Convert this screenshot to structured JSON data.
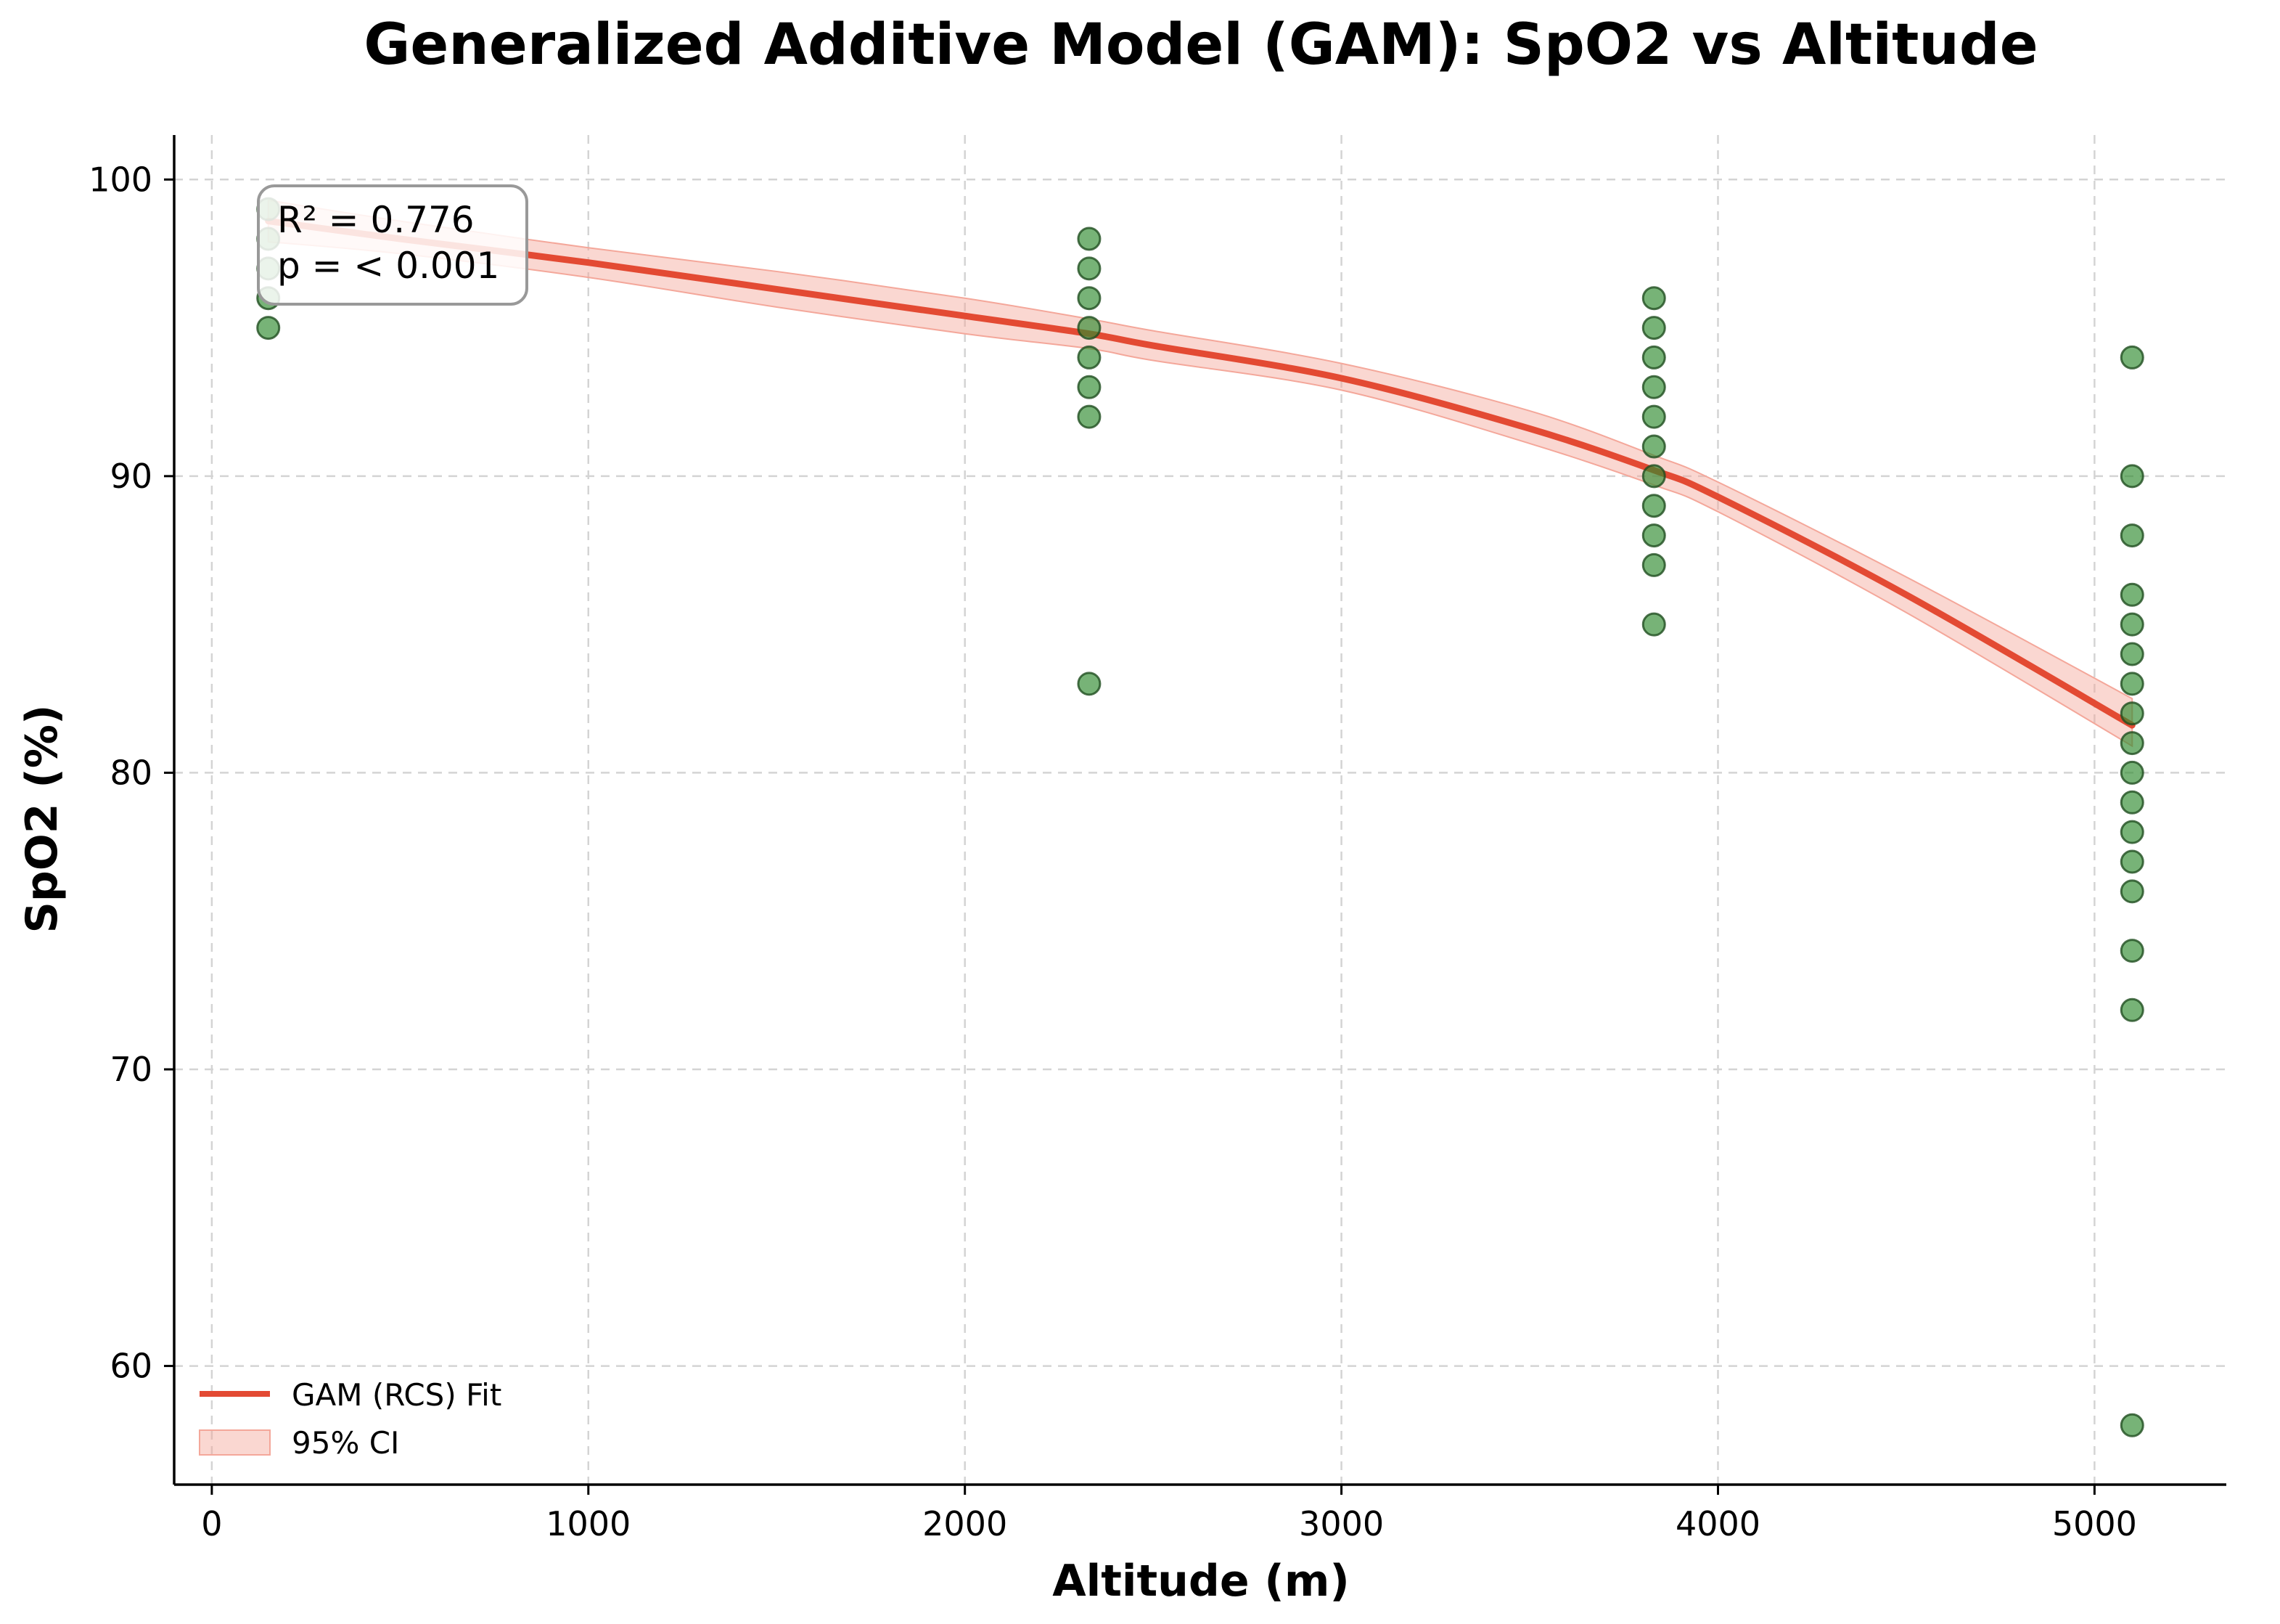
{
  "chart_data": {
    "type": "scatter",
    "title": "Generalized Additive Model (GAM): SpO2 vs Altitude",
    "xlabel": "Altitude (m)",
    "ylabel": "SpO2 (%)",
    "xlim": [
      -100,
      5350
    ],
    "ylim": [
      56,
      101.5
    ],
    "x_ticks": [
      0,
      1000,
      2000,
      3000,
      4000,
      5000
    ],
    "y_ticks": [
      60,
      70,
      80,
      90,
      100
    ],
    "grid": true,
    "legend_position": "lower-left",
    "annotation": {
      "lines": [
        "R² = 0.776",
        "p = < 0.001"
      ],
      "position": "top-left"
    },
    "colors": {
      "fit_line": "#e34a33",
      "ci_fill": "#f4a79a",
      "point_fill": "#2e8b2e",
      "point_edge": "#1f4d1f",
      "grid": "#d4d4d4"
    },
    "series": [
      {
        "name": "observations",
        "kind": "scatter",
        "points": [
          {
            "x": 150,
            "y": 99
          },
          {
            "x": 150,
            "y": 98
          },
          {
            "x": 150,
            "y": 97
          },
          {
            "x": 150,
            "y": 96
          },
          {
            "x": 150,
            "y": 95
          },
          {
            "x": 2330,
            "y": 98
          },
          {
            "x": 2330,
            "y": 97
          },
          {
            "x": 2330,
            "y": 96
          },
          {
            "x": 2330,
            "y": 95
          },
          {
            "x": 2330,
            "y": 94
          },
          {
            "x": 2330,
            "y": 93
          },
          {
            "x": 2330,
            "y": 92
          },
          {
            "x": 2330,
            "y": 83
          },
          {
            "x": 3830,
            "y": 96
          },
          {
            "x": 3830,
            "y": 95
          },
          {
            "x": 3830,
            "y": 94
          },
          {
            "x": 3830,
            "y": 93
          },
          {
            "x": 3830,
            "y": 92
          },
          {
            "x": 3830,
            "y": 91
          },
          {
            "x": 3830,
            "y": 90
          },
          {
            "x": 3830,
            "y": 89
          },
          {
            "x": 3830,
            "y": 88
          },
          {
            "x": 3830,
            "y": 87
          },
          {
            "x": 3830,
            "y": 85
          },
          {
            "x": 5100,
            "y": 94
          },
          {
            "x": 5100,
            "y": 90
          },
          {
            "x": 5100,
            "y": 88
          },
          {
            "x": 5100,
            "y": 86
          },
          {
            "x": 5100,
            "y": 85
          },
          {
            "x": 5100,
            "y": 84
          },
          {
            "x": 5100,
            "y": 83
          },
          {
            "x": 5100,
            "y": 82
          },
          {
            "x": 5100,
            "y": 81
          },
          {
            "x": 5100,
            "y": 80
          },
          {
            "x": 5100,
            "y": 79
          },
          {
            "x": 5100,
            "y": 78
          },
          {
            "x": 5100,
            "y": 77
          },
          {
            "x": 5100,
            "y": 76
          },
          {
            "x": 5100,
            "y": 74
          },
          {
            "x": 5100,
            "y": 72
          },
          {
            "x": 5100,
            "y": 58
          }
        ]
      },
      {
        "name": "GAM (RCS) Fit",
        "kind": "line",
        "x": [
          150,
          500,
          1000,
          1500,
          2000,
          2330,
          2500,
          3000,
          3500,
          3830,
          4000,
          4500,
          5100
        ],
        "y": [
          98.6,
          98.0,
          97.2,
          96.3,
          95.4,
          94.8,
          94.4,
          93.3,
          91.6,
          90.2,
          89.3,
          86.0,
          81.6
        ]
      },
      {
        "name": "95% CI",
        "kind": "band",
        "x": [
          150,
          500,
          1000,
          1500,
          2000,
          2330,
          2500,
          3000,
          3500,
          3830,
          4000,
          4500,
          5100
        ],
        "lower": [
          97.9,
          97.5,
          96.7,
          95.7,
          94.8,
          94.3,
          93.9,
          92.9,
          91.1,
          89.7,
          88.8,
          85.4,
          80.9
        ],
        "upper": [
          99.3,
          98.6,
          97.7,
          96.9,
          96.0,
          95.3,
          94.9,
          93.8,
          92.2,
          90.7,
          89.8,
          86.6,
          82.5
        ]
      }
    ]
  }
}
